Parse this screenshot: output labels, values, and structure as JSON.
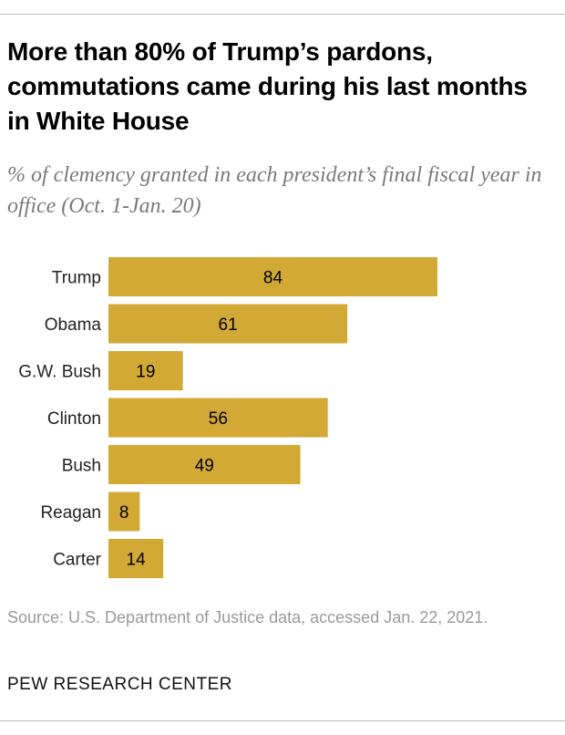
{
  "title": "More than 80% of Trump’s pardons, commutations came during his last months in White House",
  "subtitle": "% of clemency granted in each president’s final fiscal year in office (Oct. 1-Jan. 20)",
  "source": "Source: U.S. Department of Justice data, accessed Jan. 22, 2021.",
  "brand": "PEW RESEARCH CENTER",
  "colors": {
    "bar": "#d3a936",
    "label": "#000000"
  },
  "chart_data": {
    "type": "bar",
    "orientation": "horizontal",
    "categories": [
      "Trump",
      "Obama",
      "G.W. Bush",
      "Clinton",
      "Bush",
      "Reagan",
      "Carter"
    ],
    "values": [
      84,
      61,
      19,
      56,
      49,
      8,
      14
    ],
    "title": "More than 80% of Trump’s pardons, commutations came during his last months in White House",
    "xlabel": "",
    "ylabel": "",
    "xlim": [
      0,
      100
    ],
    "grid": false,
    "legend": "none"
  }
}
